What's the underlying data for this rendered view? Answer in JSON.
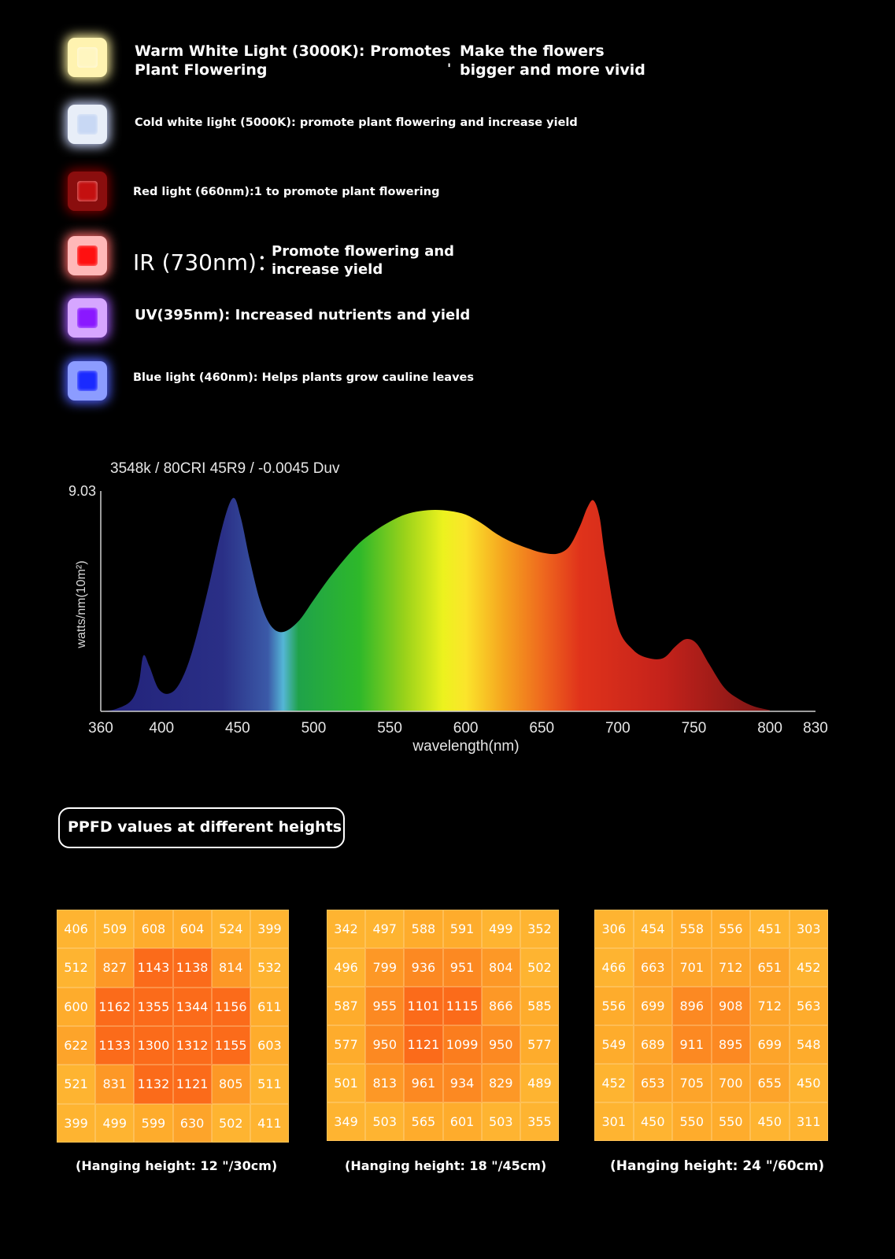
{
  "lights": [
    {
      "core": "#fff6c0",
      "frame": "#fff3b0",
      "glow": "#fff3a0"
    },
    {
      "core": "#c8d8f4",
      "frame": "#e8eef8",
      "glow": "#ccd8ff"
    },
    {
      "core": "#c41010",
      "frame": "#8a0e0e",
      "glow": "#7a0000"
    },
    {
      "core": "#ff1010",
      "frame": "#ffb8b8",
      "glow": "#ff6a6a"
    },
    {
      "core": "#8a18ff",
      "frame": "#d6a6ff",
      "glow": "#a65cff"
    },
    {
      "core": "#1a2aff",
      "frame": "#8c9cff",
      "glow": "#5060ff"
    }
  ],
  "descriptions": {
    "warm_line1": "Warm White Light (3000K): Promotes",
    "warm_line2": "Plant Flowering",
    "warm_side_line1": "Make the flowers",
    "warm_side_line2": "bigger and more vivid",
    "warm_mark": "'",
    "cold": "Cold white light (5000K): promote plant flowering and increase yield",
    "red": "Red light (660nm):1 to promote plant flowering",
    "ir_label": "IR (730nm)：",
    "ir_line1": "Promote flowering and",
    "ir_line2": "increase yield",
    "uv": "UV(395nm): Increased nutrients and yield",
    "blue": "Blue light (460nm): Helps plants grow cauline leaves"
  },
  "chart_data": {
    "type": "area",
    "title": "3548k / 80CRI 45R9 / -0.0045 Duv",
    "xlabel": "wavelength(nm)",
    "ylabel": "watts/nm(10m²)",
    "ymax_label": "9.03",
    "xlim": [
      360,
      830
    ],
    "ylim": [
      0,
      9.03
    ],
    "x_ticks": [
      360,
      400,
      450,
      500,
      550,
      600,
      650,
      700,
      750,
      800,
      830
    ],
    "x": [
      360,
      370,
      380,
      385,
      388,
      392,
      398,
      405,
      412,
      420,
      430,
      440,
      447,
      452,
      458,
      465,
      472,
      480,
      490,
      500,
      510,
      520,
      530,
      540,
      550,
      560,
      570,
      580,
      590,
      600,
      610,
      620,
      630,
      640,
      650,
      660,
      668,
      675,
      680,
      684,
      688,
      692,
      700,
      710,
      720,
      730,
      738,
      745,
      752,
      760,
      770,
      780,
      790,
      800
    ],
    "values": [
      0.0,
      0.1,
      0.45,
      1.2,
      2.35,
      1.9,
      0.95,
      0.75,
      1.2,
      2.5,
      5.0,
      7.8,
      9.0,
      8.2,
      6.4,
      4.6,
      3.6,
      3.35,
      3.8,
      4.7,
      5.6,
      6.4,
      7.1,
      7.6,
      8.0,
      8.3,
      8.45,
      8.5,
      8.45,
      8.3,
      7.95,
      7.5,
      7.15,
      6.9,
      6.7,
      6.65,
      6.95,
      7.8,
      8.6,
      8.9,
      8.2,
      6.4,
      3.6,
      2.6,
      2.25,
      2.25,
      2.75,
      3.05,
      2.85,
      2.0,
      1.0,
      0.5,
      0.2,
      0.05
    ]
  },
  "ppfd": {
    "title": "PPFD values at different heights",
    "grids": [
      {
        "caption": "(Hanging height: 12 \"/30cm)",
        "rows": [
          [
            406,
            509,
            608,
            604,
            524,
            399
          ],
          [
            512,
            827,
            1143,
            1138,
            814,
            532
          ],
          [
            600,
            1162,
            1355,
            1344,
            1156,
            611
          ],
          [
            622,
            1133,
            1300,
            1312,
            1155,
            603
          ],
          [
            521,
            831,
            1132,
            1121,
            805,
            511
          ],
          [
            399,
            499,
            599,
            630,
            502,
            411
          ]
        ]
      },
      {
        "caption": "(Hanging height: 18 \"/45cm)",
        "rows": [
          [
            342,
            497,
            588,
            591,
            499,
            352
          ],
          [
            496,
            799,
            936,
            951,
            804,
            502
          ],
          [
            587,
            955,
            1101,
            1115,
            866,
            585
          ],
          [
            577,
            950,
            1121,
            1099,
            950,
            577
          ],
          [
            501,
            813,
            961,
            934,
            829,
            489
          ],
          [
            349,
            503,
            565,
            601,
            503,
            355
          ]
        ]
      },
      {
        "caption": "(Hanging height: 24 \"/60cm)",
        "rows": [
          [
            306,
            454,
            558,
            556,
            451,
            303
          ],
          [
            466,
            663,
            701,
            712,
            651,
            452
          ],
          [
            556,
            699,
            896,
            908,
            712,
            563
          ],
          [
            549,
            689,
            911,
            895,
            699,
            548
          ],
          [
            452,
            653,
            705,
            700,
            655,
            450
          ],
          [
            301,
            450,
            550,
            550,
            450,
            311
          ]
        ]
      }
    ]
  }
}
